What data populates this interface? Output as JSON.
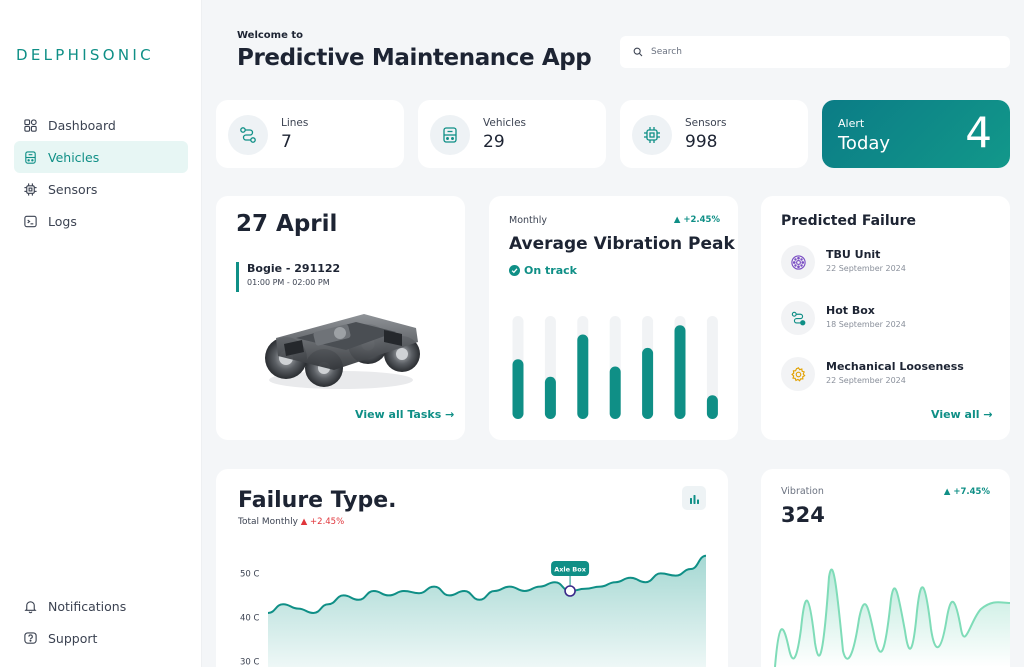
{
  "brand": {
    "logo_text": "DELPHISONIC"
  },
  "sidebar": {
    "items": [
      {
        "label": "Dashboard",
        "icon": "dashboard-icon"
      },
      {
        "label": "Vehicles",
        "icon": "vehicle-icon",
        "active": true
      },
      {
        "label": "Sensors",
        "icon": "chip-icon"
      },
      {
        "label": "Logs",
        "icon": "terminal-icon"
      }
    ],
    "bottom": [
      {
        "label": "Notifications",
        "icon": "bell-icon"
      },
      {
        "label": "Support",
        "icon": "help-icon"
      }
    ]
  },
  "header": {
    "welcome": "Welcome to",
    "title": "Predictive Maintenance App",
    "search_placeholder": "Search"
  },
  "stats": [
    {
      "label": "Lines",
      "value": "7",
      "icon": "route-icon"
    },
    {
      "label": "Vehicles",
      "value": "29",
      "icon": "vehicle-icon"
    },
    {
      "label": "Sensors",
      "value": "998",
      "icon": "chip-icon"
    }
  ],
  "alert": {
    "label": "Alert",
    "sub": "Today",
    "value": "4"
  },
  "schedule": {
    "date": "27 April",
    "item_name": "Bogie - 291122",
    "item_time": "01:00 PM - 02:00 PM",
    "link": "View all Tasks →"
  },
  "vibration_peak": {
    "period": "Monthly",
    "change": "+2.45%",
    "title": "Average Vibration Peak",
    "status": "On track"
  },
  "chart_data": [
    {
      "type": "bar",
      "values": [
        0.58,
        0.41,
        0.82,
        0.51,
        0.69,
        0.91,
        0.23
      ],
      "ylim": [
        0,
        1
      ]
    },
    {
      "type": "area",
      "title": "Failure Type.",
      "subtitle": "Total Monthly",
      "change": "+2.45%",
      "y_ticks": [
        "50 C",
        "40 C",
        "30 C"
      ],
      "y_tick_values": [
        50,
        40,
        30
      ],
      "ylim": [
        26,
        56
      ],
      "values": [
        41,
        43,
        42,
        41,
        43,
        45,
        44,
        46,
        45,
        46,
        45.5,
        47,
        45,
        46,
        44,
        46,
        47,
        46,
        47,
        48,
        46,
        46.5,
        47,
        48,
        49,
        48,
        50,
        49.5,
        51,
        54
      ],
      "annotation": {
        "label": "Axle Box",
        "index": 20
      }
    },
    {
      "type": "line",
      "label": "Vibration",
      "value": "324",
      "change": "+7.45%"
    }
  ],
  "predicted_failure": {
    "title": "Predicted Failure",
    "items": [
      {
        "name": "TBU Unit",
        "date": "22 September 2024",
        "icon": "sensor-ring-icon",
        "color": "#7b4fc4"
      },
      {
        "name": "Hot Box",
        "date": "18 September 2024",
        "icon": "route-icon",
        "color": "#0f8f86"
      },
      {
        "name": "Mechanical Looseness",
        "date": "22 September 2024",
        "icon": "gear-icon",
        "color": "#e2a100"
      }
    ],
    "link": "View all →"
  },
  "colors": {
    "accent": "#0f8f86",
    "alert_bg": "#0d7f82",
    "negative": "#e0353b"
  }
}
